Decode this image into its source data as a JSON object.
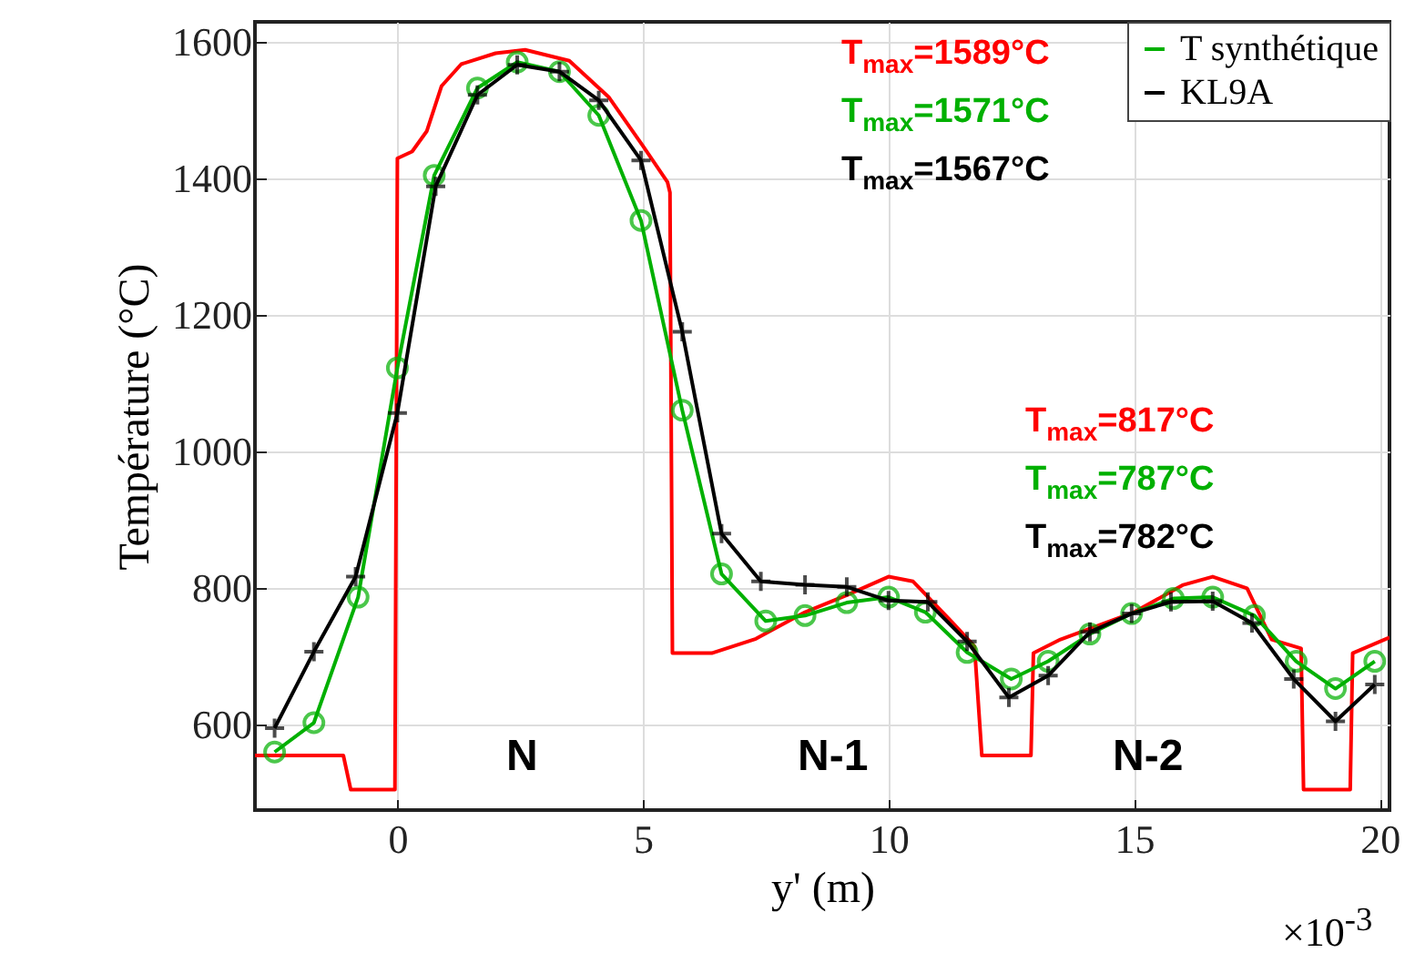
{
  "chart_data": {
    "type": "line",
    "xlabel": "y' (m)",
    "ylabel": "Température (°C)",
    "xlim": [
      -2.9,
      20.2
    ],
    "ylim": [
      475,
      1630
    ],
    "xticks": [
      0,
      5,
      10,
      15,
      20
    ],
    "yticks": [
      600,
      800,
      1000,
      1200,
      1400,
      1600
    ],
    "grid": true,
    "legend": "top right",
    "series": [
      {
        "color": "#ff0000",
        "marker": "none",
        "x": [
          -2.9,
          -1.1,
          -0.95,
          -0.05,
          0,
          0.3,
          0.6,
          0.9,
          1.3,
          2.0,
          2.6,
          3.5,
          4.3,
          5.0,
          5.5,
          5.55,
          5.6,
          6.4,
          7.3,
          8.3,
          9.15,
          10.0,
          10.5,
          11.3,
          11.75,
          11.9,
          12.9,
          12.95,
          13.5,
          14.1,
          15.0,
          16.0,
          16.6,
          17.3,
          17.8,
          18.4,
          18.45,
          19.4,
          19.45,
          20.2
        ],
        "values": [
          555,
          555,
          505,
          505,
          1430,
          1440,
          1470,
          1536,
          1568,
          1584,
          1589,
          1573,
          1520,
          1448,
          1395,
          1380,
          705,
          705,
          726,
          765,
          790,
          817,
          810,
          750,
          715,
          555,
          555,
          705,
          725,
          741,
          765,
          805,
          817,
          800,
          725,
          712,
          505,
          505,
          705,
          728
        ]
      },
      {
        "name": "T synthétique",
        "color": "#00b000",
        "marker": "circle",
        "x": [
          -2.5,
          -1.7,
          -0.8,
          0,
          0.75,
          1.63,
          2.44,
          3.3,
          4.1,
          4.96,
          5.8,
          6.6,
          7.5,
          8.3,
          9.15,
          10.0,
          10.75,
          11.6,
          12.5,
          13.25,
          14.1,
          14.95,
          15.8,
          16.6,
          17.45,
          18.3,
          19.1,
          19.9
        ],
        "values": [
          560,
          603,
          787,
          1123,
          1405,
          1533,
          1571,
          1557,
          1493,
          1339,
          1061,
          821,
          752,
          760,
          779,
          787,
          765,
          706,
          667,
          693,
          733,
          763,
          785,
          787,
          760,
          693,
          653,
          693
        ]
      },
      {
        "name": "KL9A",
        "color": "#000000",
        "marker": "cross",
        "x": [
          -2.5,
          -1.7,
          -0.85,
          0,
          0.78,
          1.63,
          2.44,
          3.3,
          4.1,
          4.96,
          5.8,
          6.6,
          7.4,
          8.3,
          9.15,
          10.0,
          10.8,
          11.6,
          12.45,
          13.25,
          14.1,
          14.95,
          15.75,
          16.6,
          17.4,
          18.25,
          19.1,
          19.9
        ],
        "values": [
          595,
          707,
          817,
          1057,
          1389,
          1523,
          1567,
          1557,
          1515,
          1427,
          1176,
          880,
          810,
          805,
          802,
          782,
          780,
          722,
          640,
          672,
          736,
          763,
          780,
          781,
          749,
          667,
          605,
          659
        ]
      }
    ],
    "annotations": [
      "T$_{max}$=1589°C",
      "T$_{max}$=1571°C",
      "T$_{max}$=1567°C",
      "T$_{max}$=817°C",
      "T$_{max}$=787°C",
      "T$_{max}$=782°C",
      "N",
      "N-1",
      "N-2",
      "×10$^{-3}$"
    ]
  }
}
